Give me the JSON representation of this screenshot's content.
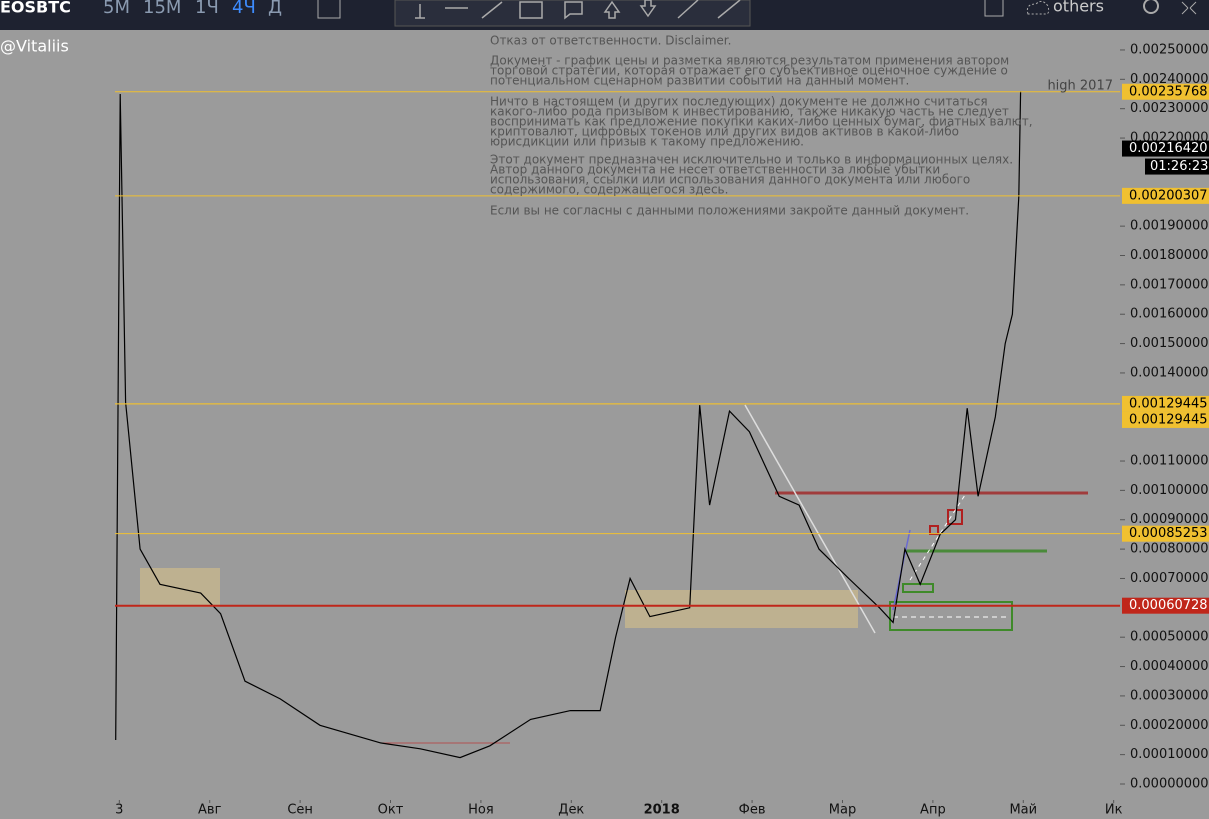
{
  "toolbar": {
    "symbol": "EOSBTC",
    "intervals": [
      "5М",
      "15М",
      "1Ч",
      "4Ч",
      "Д"
    ],
    "others": "others"
  },
  "author": "@Vitaliis",
  "disclaimer": [
    "Отказ от ответственности. Disclaimer.",
    "Документ - график цены и разметка являются результатом применения автором",
    "торговой стратегии, которая отражает его субъективное оценочное суждение о",
    "потенциальном сценарном развитии событий на данный момент.",
    "Ничто в настоящем (и других последующих) документе не должно считаться",
    "какого-либо рода призывом к инвестированию, также никакую часть не следует",
    "воспринимать как предложение покупки каких-либо ценных бумаг, фиатных валют,",
    "криптовалют, цифровых токенов или других видов активов в какой-либо",
    "юрисдикции или призыв к такому предложению.",
    "Этот документ предназначен исключительно и только в информационных целях.",
    "Автор данного документа не несет ответственности за любые убытки",
    "использования, ссылки или использования данного документа или любого",
    "содержимого, содержащегося здесь.",
    "Если вы не согласны с данными положениями закройте данный документ."
  ],
  "chart_data": {
    "type": "line",
    "color": "#000000",
    "x": [
      -0.04,
      0.01,
      0.07,
      0.23,
      0.45,
      0.9,
      1.12,
      1.39,
      1.78,
      2.22,
      2.89,
      3.33,
      3.77,
      4.1,
      4.55,
      4.99,
      5.32,
      5.49,
      5.65,
      5.87,
      6.31,
      6.42,
      6.53,
      6.75,
      6.97,
      7.3,
      7.52,
      7.74,
      8.07,
      8.41,
      8.56,
      8.69,
      8.86,
      9.08,
      9.25,
      9.38,
      9.5,
      9.69,
      9.8,
      9.88,
      9.95,
      9.97
    ],
    "values": [
      0.00015,
      0.00235,
      0.0013,
      0.0008,
      0.00068,
      0.00065,
      0.00058,
      0.00035,
      0.00029,
      0.0002,
      0.00014,
      0.00012,
      9e-05,
      0.00013,
      0.00022,
      0.00025,
      0.00025,
      0.0005,
      0.0007,
      0.00057,
      0.0006,
      0.00129,
      0.00095,
      0.00127,
      0.0012,
      0.00098,
      0.00095,
      0.0008,
      0.0007,
      0.0006,
      0.00055,
      0.0008,
      0.00068,
      0.00085,
      0.0009,
      0.00128,
      0.00098,
      0.00125,
      0.0015,
      0.0016,
      0.002,
      0.00236
    ],
    "xlim": [
      -1.32,
      11.07
    ],
    "ylim": [
      -5.45e-05,
      0.002568
    ],
    "xticks": [
      {
        "value": 0,
        "label": "3"
      },
      {
        "value": 1,
        "label": "Авг"
      },
      {
        "value": 2,
        "label": "Сен"
      },
      {
        "value": 3,
        "label": "Окт"
      },
      {
        "value": 4,
        "label": "Ноя"
      },
      {
        "value": 5,
        "label": "Дек"
      },
      {
        "value": 6,
        "label": "2018"
      },
      {
        "value": 7,
        "label": "Фев"
      },
      {
        "value": 8,
        "label": "Мар"
      },
      {
        "value": 9,
        "label": "Апр"
      },
      {
        "value": 10,
        "label": "Май"
      },
      {
        "value": 11,
        "label": "Ик"
      }
    ],
    "yticks": [
      {
        "value": 0.0025,
        "label": "0.00250000"
      },
      {
        "value": 0.0024,
        "label": "0.00240000"
      },
      {
        "value": 0.0023,
        "label": "0.00230000"
      },
      {
        "value": 0.0022,
        "label": "0.00220000"
      },
      {
        "value": 0.0019,
        "label": "0.00190000"
      },
      {
        "value": 0.0018,
        "label": "0.00180000"
      },
      {
        "value": 0.0017,
        "label": "0.00170000"
      },
      {
        "value": 0.0016,
        "label": "0.00160000"
      },
      {
        "value": 0.0015,
        "label": "0.00150000"
      },
      {
        "value": 0.0014,
        "label": "0.00140000"
      },
      {
        "value": 0.0011,
        "label": "0.00110000"
      },
      {
        "value": 0.001,
        "label": "0.00100000"
      },
      {
        "value": 0.0009,
        "label": "0.00090000"
      },
      {
        "value": 0.0008,
        "label": "0.00080000"
      },
      {
        "value": 0.0007,
        "label": "0.00070000"
      },
      {
        "value": 0.0005,
        "label": "0.00050000"
      },
      {
        "value": 0.0004,
        "label": "0.00040000"
      },
      {
        "value": 0.0003,
        "label": "0.00030000"
      },
      {
        "value": 0.0002,
        "label": "0.00020000"
      },
      {
        "value": 0.0001,
        "label": "0.00010000"
      },
      {
        "value": 0,
        "label": "0.00000000"
      }
    ],
    "levels": [
      {
        "value": 0.00235768,
        "label": "0.00235768",
        "color": "#f0c030"
      },
      {
        "value": 0.00200307,
        "label": "0.00200307",
        "color": "#f0c030"
      },
      {
        "value": 0.00129445,
        "label": "0.00129445",
        "color": "#f0c030"
      },
      {
        "value": 0.00129445,
        "label": "0.00129445",
        "color": "#f0c030"
      },
      {
        "value": 0.00085253,
        "label": "0.00085253",
        "color": "#f0c030"
      },
      {
        "value": 0.00060728,
        "label": "0.00060728",
        "color": "#c0261a"
      }
    ],
    "current_price": {
      "value": 0.0021642,
      "label": "0.00216420"
    },
    "countdown": "01:26:23",
    "annotation": "high 2017"
  }
}
